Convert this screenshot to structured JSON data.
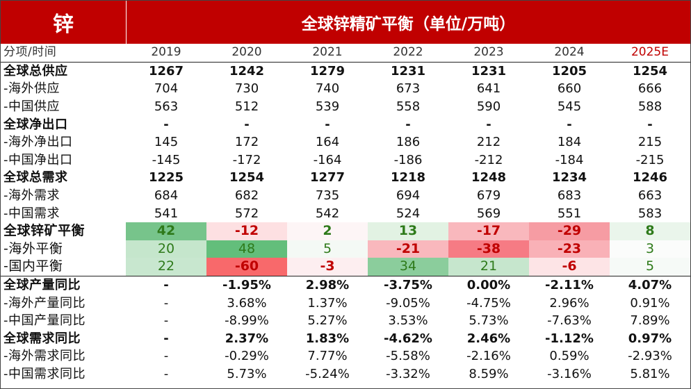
{
  "banner": {
    "left": "锌",
    "title": "全球锌精矿平衡（单位/万吨）"
  },
  "header": {
    "label": "分项/时间",
    "years": [
      "2019",
      "2020",
      "2021",
      "2022",
      "2023",
      "2024",
      "2025E"
    ]
  },
  "rows": [
    {
      "label": "全球总供应",
      "values": [
        "1267",
        "1242",
        "1279",
        "1231",
        "1231",
        "1205",
        "1254"
      ]
    },
    {
      "label": "-海外供应",
      "values": [
        "704",
        "730",
        "740",
        "673",
        "641",
        "660",
        "666"
      ]
    },
    {
      "label": "-中国供应",
      "values": [
        "563",
        "512",
        "539",
        "558",
        "590",
        "545",
        "588"
      ]
    },
    {
      "label": "全球净出口",
      "values": [
        "-",
        "-",
        "-",
        "-",
        "-",
        "-",
        "-"
      ]
    },
    {
      "label": "-海外净出口",
      "values": [
        "145",
        "172",
        "164",
        "186",
        "212",
        "184",
        "215"
      ]
    },
    {
      "label": "-中国净出口",
      "values": [
        "-145",
        "-172",
        "-164",
        "-186",
        "-212",
        "-184",
        "-215"
      ]
    },
    {
      "label": "全球总需求",
      "values": [
        "1225",
        "1254",
        "1277",
        "1218",
        "1248",
        "1234",
        "1246"
      ]
    },
    {
      "label": "-海外需求",
      "values": [
        "684",
        "682",
        "735",
        "694",
        "679",
        "683",
        "663"
      ]
    },
    {
      "label": "-中国需求",
      "values": [
        "541",
        "572",
        "542",
        "524",
        "569",
        "551",
        "583"
      ]
    },
    {
      "label": "全球锌矿平衡",
      "values": [
        "42",
        "-12",
        "2",
        "13",
        "-17",
        "-29",
        "8"
      ]
    },
    {
      "label": "-海外平衡",
      "values": [
        "20",
        "48",
        "5",
        "-21",
        "-38",
        "-23",
        "3"
      ]
    },
    {
      "label": "-国内平衡",
      "values": [
        "22",
        "-60",
        "-3",
        "34",
        "21",
        "-6",
        "5"
      ]
    },
    {
      "label": "全球产量同比",
      "values": [
        "-",
        "-1.95%",
        "2.98%",
        "-3.75%",
        "0.00%",
        "-2.11%",
        "4.07%"
      ]
    },
    {
      "label": "-海外产量同比",
      "values": [
        "-",
        "3.68%",
        "1.37%",
        "-9.05%",
        "-4.75%",
        "2.96%",
        "0.91%"
      ]
    },
    {
      "label": "-中国产量同比",
      "values": [
        "-",
        "-8.99%",
        "5.27%",
        "3.53%",
        "5.73%",
        "-7.63%",
        "7.89%"
      ]
    },
    {
      "label": "全球需求同比",
      "values": [
        "-",
        "2.37%",
        "1.83%",
        "-4.62%",
        "2.46%",
        "-1.12%",
        "0.97%"
      ]
    },
    {
      "label": "-海外需求同比",
      "values": [
        "-",
        "-0.29%",
        "7.77%",
        "-5.58%",
        "-2.16%",
        "0.59%",
        "-2.93%"
      ]
    },
    {
      "label": "-中国需求同比",
      "values": [
        "-",
        "5.73%",
        "-5.24%",
        "-3.32%",
        "8.59%",
        "-3.16%",
        "5.81%"
      ]
    }
  ],
  "colors": {
    "banner": "#c00000",
    "highlight_year": "#c00000",
    "positive_text": "#2e7a1a",
    "negative_text": "#c00000"
  }
}
